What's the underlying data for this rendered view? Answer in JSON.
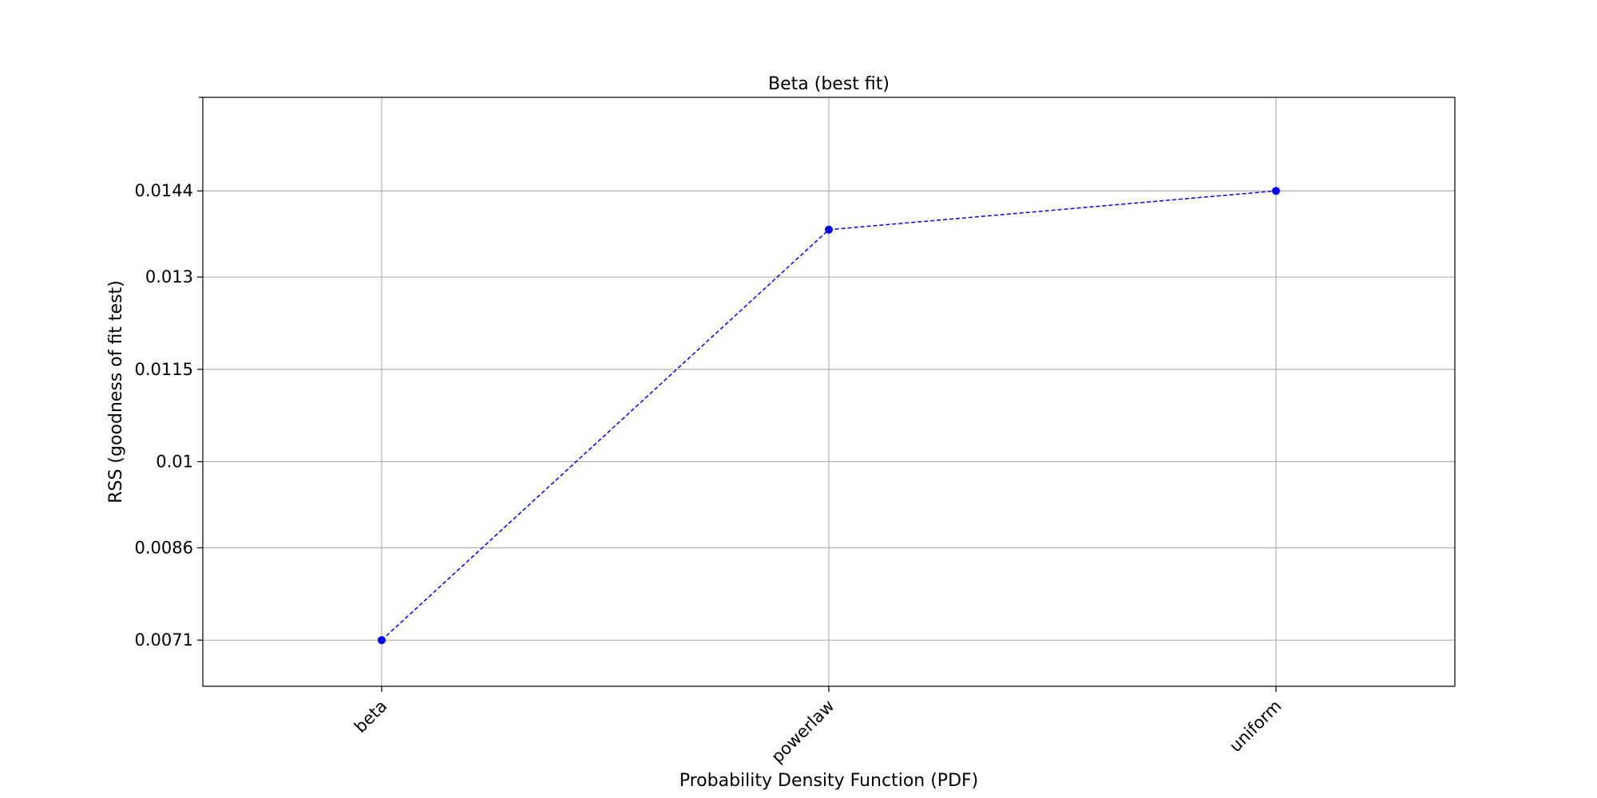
{
  "chart_data": {
    "type": "line",
    "title": "Beta (best fit)",
    "xlabel": "Probability Density Function (PDF)",
    "ylabel": "RSS (goodness of fit test)",
    "categories": [
      "beta",
      "powerlaw",
      "uniform"
    ],
    "series": [
      {
        "values": [
          0.0071,
          0.01377,
          0.0144
        ],
        "color": "#0000ff",
        "line_style": "dashed",
        "marker": "circle"
      }
    ],
    "yticks": [
      0.0071,
      0.0086,
      0.01,
      0.0115,
      0.013,
      0.0144
    ],
    "ytick_labels": [
      "0.0071",
      "0.0086",
      "0.01",
      "0.0115",
      "0.013",
      "0.0144"
    ],
    "ylim": [
      0.00635,
      0.01592
    ],
    "grid": true,
    "legend": "none"
  }
}
